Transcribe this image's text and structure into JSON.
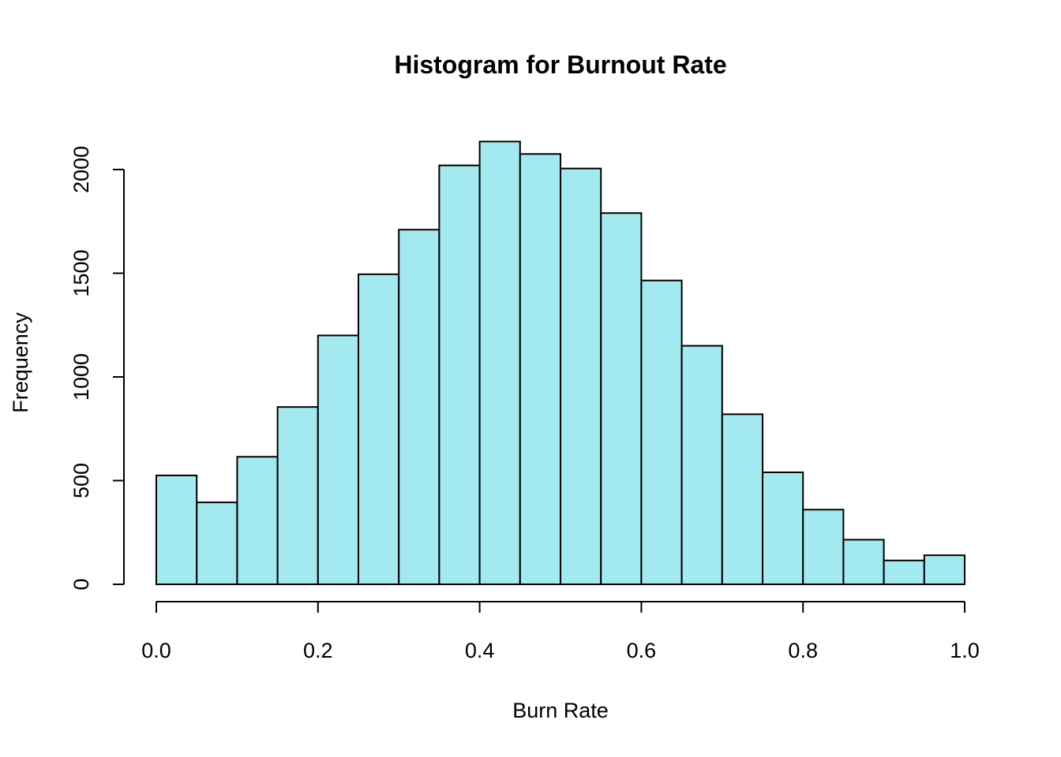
{
  "chart_data": {
    "type": "bar",
    "subtype": "histogram",
    "title": "Histogram for Burnout Rate",
    "xlabel": "Burn Rate",
    "ylabel": "Frequency",
    "xlim": [
      0.0,
      1.0
    ],
    "ylim": [
      0,
      2000
    ],
    "bin_edges": [
      0.0,
      0.05,
      0.1,
      0.15,
      0.2,
      0.25,
      0.3,
      0.35,
      0.4,
      0.45,
      0.5,
      0.55,
      0.6,
      0.65,
      0.7,
      0.75,
      0.8,
      0.85,
      0.9,
      0.95,
      1.0
    ],
    "values": [
      525,
      395,
      615,
      855,
      1200,
      1495,
      1710,
      2020,
      2135,
      2075,
      2005,
      1790,
      1465,
      1150,
      820,
      540,
      360,
      215,
      115,
      140
    ],
    "x_ticks": [
      "0.0",
      "0.2",
      "0.4",
      "0.6",
      "0.8",
      "1.0"
    ],
    "y_ticks": [
      "0",
      "500",
      "1000",
      "1500",
      "2000"
    ],
    "bar_color": "#A2E9F0",
    "edge_color": "#000000",
    "grid": false,
    "legend": "none"
  }
}
